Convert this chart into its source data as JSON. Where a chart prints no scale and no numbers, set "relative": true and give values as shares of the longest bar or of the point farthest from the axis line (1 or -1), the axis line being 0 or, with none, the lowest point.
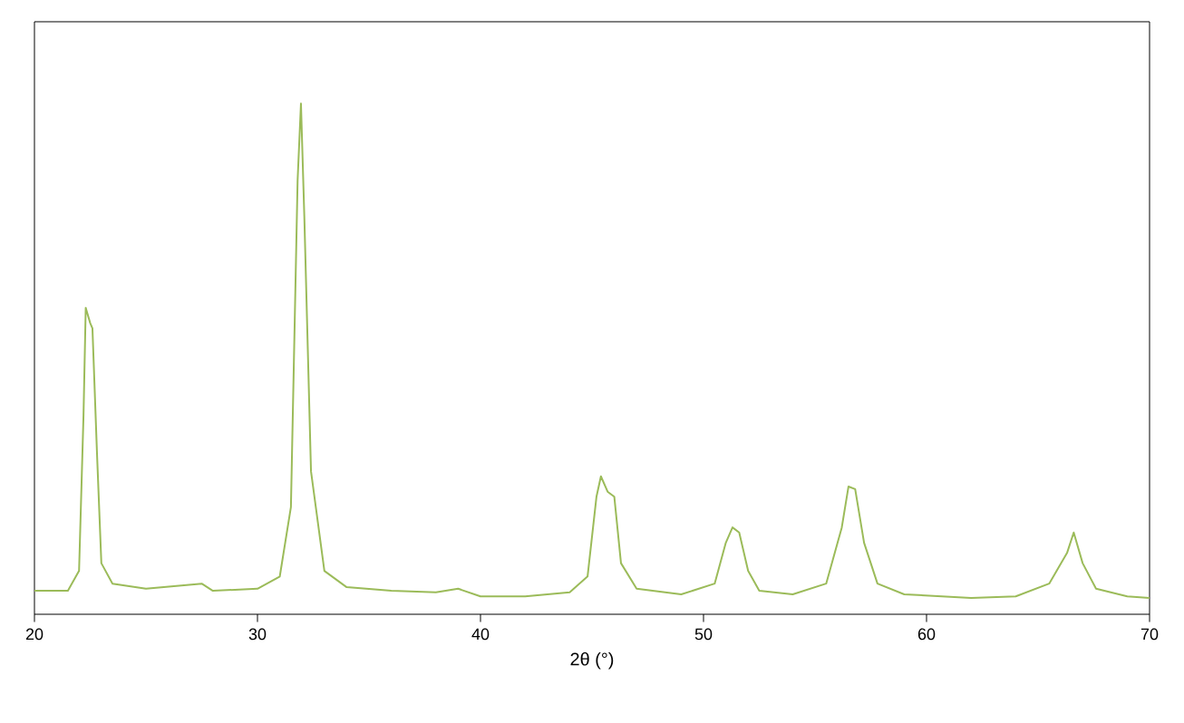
{
  "chart_data": {
    "type": "line",
    "xlabel": "2θ (°)",
    "relative": true,
    "xlim": [
      20,
      70
    ],
    "xticks": [
      20,
      30,
      40,
      50,
      60,
      70
    ],
    "marker": "none",
    "line_style": "solid",
    "series": [
      {
        "color": "#9bbb59",
        "x": [
          20,
          21.5,
          22,
          22.2,
          22.3,
          22.5,
          22.6,
          22.8,
          23,
          23.5,
          25,
          27.5,
          28,
          30,
          31,
          31.5,
          31.8,
          31.95,
          32.1,
          32.4,
          33,
          34,
          36,
          38,
          39,
          40,
          42,
          44,
          44.8,
          45.2,
          45.4,
          45.7,
          46,
          46.3,
          47,
          49,
          50.5,
          51,
          51.3,
          51.6,
          52,
          52.5,
          54,
          55.5,
          56.2,
          56.5,
          56.8,
          57.2,
          57.8,
          59,
          62,
          64,
          65.5,
          66.3,
          66.6,
          67,
          67.6,
          69,
          70
        ],
        "values": [
          0.046,
          0.046,
          0.085,
          0.39,
          0.6,
          0.57,
          0.56,
          0.32,
          0.1,
          0.06,
          0.05,
          0.06,
          0.046,
          0.05,
          0.074,
          0.21,
          0.85,
          1,
          0.78,
          0.28,
          0.085,
          0.053,
          0.046,
          0.043,
          0.05,
          0.035,
          0.035,
          0.043,
          0.074,
          0.23,
          0.27,
          0.24,
          0.23,
          0.1,
          0.05,
          0.039,
          0.06,
          0.14,
          0.17,
          0.16,
          0.085,
          0.046,
          0.039,
          0.06,
          0.17,
          0.25,
          0.245,
          0.14,
          0.06,
          0.039,
          0.032,
          0.035,
          0.06,
          0.12,
          0.16,
          0.1,
          0.05,
          0.035,
          0.032
        ]
      }
    ]
  }
}
